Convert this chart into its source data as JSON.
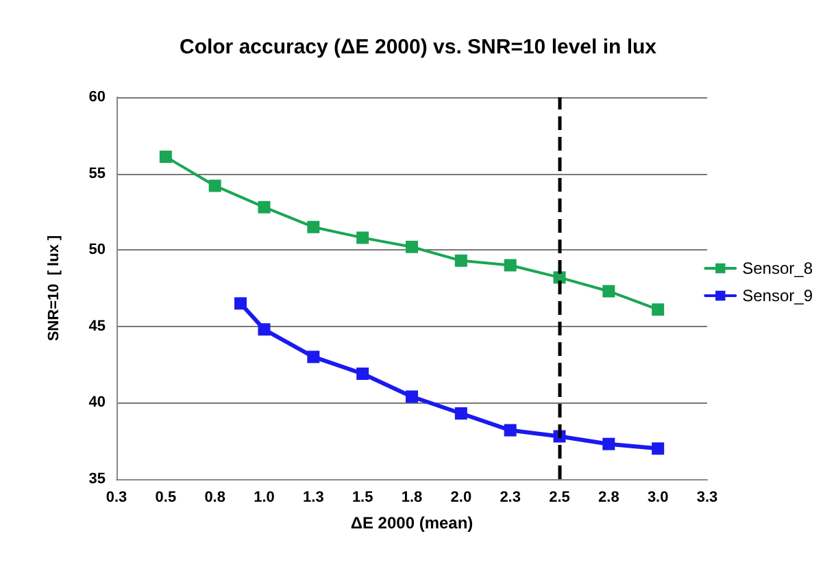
{
  "chart_data": {
    "type": "line",
    "title": "Color accuracy (ΔE 2000) vs. SNR=10 level in lux",
    "xlabel": "ΔE 2000 (mean)",
    "ylabel": "SNR=10  [ lux ]",
    "xlim": [
      0.25,
      3.25
    ],
    "xticks": [
      {
        "value": 0.25,
        "label": "0.3"
      },
      {
        "value": 0.5,
        "label": "0.5"
      },
      {
        "value": 0.75,
        "label": "0.8"
      },
      {
        "value": 1.0,
        "label": "1.0"
      },
      {
        "value": 1.25,
        "label": "1.3"
      },
      {
        "value": 1.5,
        "label": "1.5"
      },
      {
        "value": 1.75,
        "label": "1.8"
      },
      {
        "value": 2.0,
        "label": "2.0"
      },
      {
        "value": 2.25,
        "label": "2.3"
      },
      {
        "value": 2.5,
        "label": "2.5"
      },
      {
        "value": 2.75,
        "label": "2.8"
      },
      {
        "value": 3.0,
        "label": "3.0"
      },
      {
        "value": 3.25,
        "label": "3.3"
      }
    ],
    "ylim": [
      35,
      60
    ],
    "yticks": [
      35,
      40,
      45,
      50,
      55,
      60
    ],
    "series": [
      {
        "name": "Sensor_8",
        "color": "#1aa655",
        "x": [
          0.5,
          0.75,
          1.0,
          1.25,
          1.5,
          1.75,
          2.0,
          2.25,
          2.5,
          2.75,
          3.0
        ],
        "values": [
          56.1,
          54.2,
          52.8,
          51.5,
          50.8,
          50.2,
          49.3,
          49.0,
          48.2,
          47.3,
          46.1
        ]
      },
      {
        "name": "Sensor_9",
        "color": "#1a1aee",
        "x": [
          0.88,
          1.0,
          1.25,
          1.5,
          1.75,
          2.0,
          2.25,
          2.5,
          2.75,
          3.0
        ],
        "values": [
          46.5,
          44.8,
          43.0,
          41.9,
          40.4,
          39.3,
          38.2,
          37.8,
          37.3,
          37.0
        ]
      }
    ],
    "ref_lines": [
      {
        "axis": "x",
        "value": 2.5,
        "color": "#000000",
        "line_style": "dashed"
      }
    ],
    "grid": "y",
    "legend": "right",
    "marker": "square",
    "line_style": "solid"
  }
}
